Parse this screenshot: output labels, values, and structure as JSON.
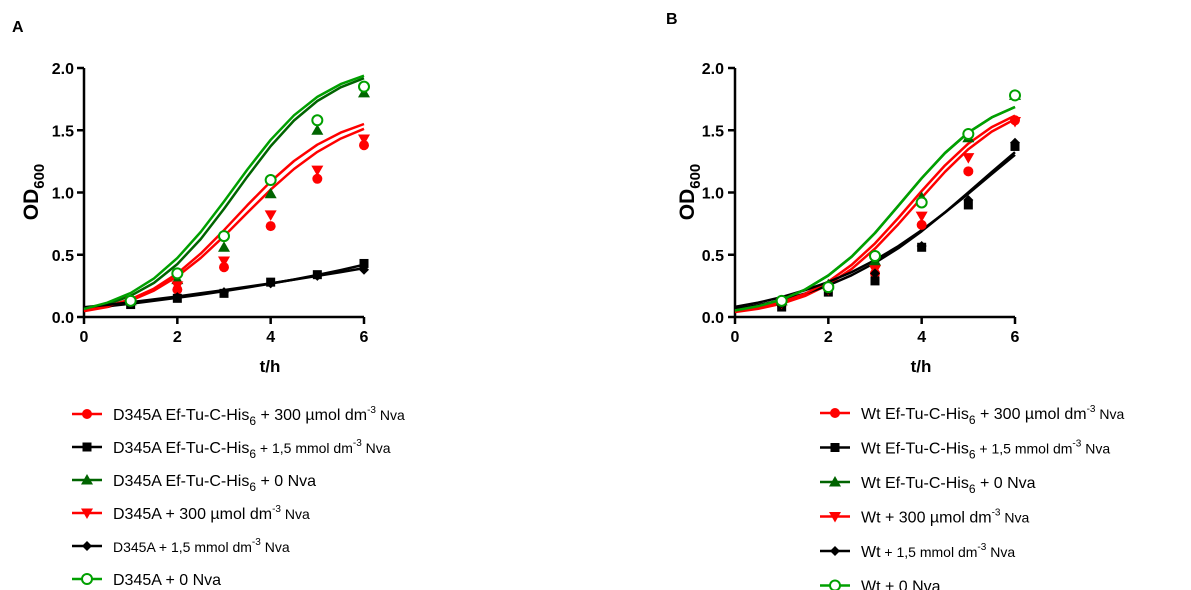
{
  "chart_data": [
    {
      "type": "line",
      "panel": "A",
      "xlabel": "t/h",
      "ylabel": "OD",
      "ylabel_sub": "600",
      "xlim": [
        0,
        6
      ],
      "ylim": [
        0,
        2.0
      ],
      "xticks": [
        0,
        2,
        4,
        6
      ],
      "xtick_labels": [
        "0",
        "2",
        "4",
        "6"
      ],
      "yticks": [
        0,
        0.5,
        1.0,
        1.5,
        2.0
      ],
      "ytick_labels": [
        "0.0",
        "0.5",
        "1.0",
        "1.5",
        "2.0"
      ],
      "grid": false,
      "legend_position": "bottom-left",
      "x": [
        1,
        2,
        3,
        4,
        5,
        6
      ],
      "series": [
        {
          "name": "D345A Ef-Tu-C-His6 + 300 µmol dm-3 Nva",
          "legend_parts": [
            "D345A Ef-Tu-C-His",
            "6",
            " + 300 µmol dm",
            "-3",
            " Nva"
          ],
          "color": "#ff0000",
          "marker": "circle-filled",
          "values": [
            0.12,
            0.22,
            0.4,
            0.73,
            1.11,
            1.38
          ],
          "fit": [
            0.047,
            0.08,
            0.132,
            0.212,
            0.326,
            0.474,
            0.649,
            0.838,
            1.023,
            1.189,
            1.326,
            1.433,
            1.512
          ]
        },
        {
          "name": "D345A Ef-Tu-C-His6 + 1,5 mmol dm-3 Nva",
          "legend_parts": [
            "D345A Ef-Tu-C-His",
            "6",
            " + 1,5 mmol dm",
            "-3",
            " Nva"
          ],
          "color": "#000000",
          "marker": "square-filled",
          "values": [
            0.1,
            0.15,
            0.19,
            0.28,
            0.34,
            0.43
          ],
          "fit": [
            0.07,
            0.087,
            0.107,
            0.13,
            0.155,
            0.18,
            0.208,
            0.237,
            0.268,
            0.301,
            0.337,
            0.377,
            0.42
          ]
        },
        {
          "name": "D345A Ef-Tu-C-His6 + 0 Nva",
          "legend_parts": [
            "D345A Ef-Tu-C-His",
            "6",
            " + 0 Nva"
          ],
          "color": "#006400",
          "marker": "triangle-up-filled",
          "values": [
            0.13,
            0.3,
            0.56,
            0.99,
            1.5,
            1.8
          ],
          "fit": [
            0.059,
            0.102,
            0.17,
            0.274,
            0.425,
            0.626,
            0.868,
            1.127,
            1.373,
            1.578,
            1.735,
            1.845,
            1.918
          ]
        },
        {
          "name": "D345A + 300 µmol dm-3 Nva",
          "legend_parts": [
            "D345A + 300 µmol dm",
            "-3",
            " Nva"
          ],
          "color": "#ff0000",
          "marker": "triangle-down-filled",
          "values": [
            0.12,
            0.25,
            0.45,
            0.82,
            1.18,
            1.43
          ],
          "fit": [
            0.05,
            0.086,
            0.142,
            0.228,
            0.35,
            0.509,
            0.697,
            0.897,
            1.088,
            1.253,
            1.384,
            1.481,
            1.55
          ]
        },
        {
          "name": "D345A + 1,5 mmol dm-3 Nva",
          "legend_parts": [
            "D345A + 1,5 mmol dm",
            "-3",
            " Nva"
          ],
          "color": "#000000",
          "marker": "diamond-filled",
          "values": [
            0.11,
            0.16,
            0.2,
            0.27,
            0.33,
            0.38
          ],
          "fit": [
            0.078,
            0.097,
            0.118,
            0.141,
            0.165,
            0.19,
            0.216,
            0.243,
            0.271,
            0.3,
            0.33,
            0.361,
            0.393
          ]
        },
        {
          "name": "D345A + 0 Nva",
          "legend_parts": [
            "D345A + 0 Nva"
          ],
          "color": "#00a000",
          "marker": "circle-open",
          "values": [
            0.13,
            0.35,
            0.65,
            1.1,
            1.58,
            1.85
          ],
          "fit": [
            0.065,
            0.115,
            0.193,
            0.31,
            0.473,
            0.683,
            0.928,
            1.184,
            1.423,
            1.62,
            1.768,
            1.871,
            1.938
          ]
        }
      ]
    },
    {
      "type": "line",
      "panel": "B",
      "xlabel": "t/h",
      "ylabel": "OD",
      "ylabel_sub": "600",
      "xlim": [
        0,
        6
      ],
      "ylim": [
        0,
        2.0
      ],
      "xticks": [
        0,
        2,
        4,
        6
      ],
      "xtick_labels": [
        "0",
        "2",
        "4",
        "6"
      ],
      "yticks": [
        0,
        0.5,
        1.0,
        1.5,
        2.0
      ],
      "ytick_labels": [
        "0.0",
        "0.5",
        "1.0",
        "1.5",
        "2.0"
      ],
      "grid": false,
      "legend_position": "bottom-right",
      "x": [
        1,
        2,
        3,
        4,
        5,
        6
      ],
      "series": [
        {
          "name": "Wt Ef-Tu-C-His6 + 300 µmol dm-3 Nva",
          "legend_parts": [
            "Wt Ef-Tu-C-His",
            "6",
            " + 300 µmol dm",
            "-3",
            " Nva"
          ],
          "color": "#ff0000",
          "marker": "circle-filled",
          "values": [
            0.1,
            0.23,
            0.35,
            0.74,
            1.17,
            1.58
          ],
          "fit": [
            0.04,
            0.066,
            0.107,
            0.169,
            0.26,
            0.386,
            0.549,
            0.745,
            0.958,
            1.166,
            1.348,
            1.489,
            1.589
          ]
        },
        {
          "name": "Wt Ef-Tu-C-His6 + 1,5 mmol dm-3 Nva",
          "legend_parts": [
            "Wt Ef-Tu-C-His",
            "6",
            " + 1,5 mmol dm",
            "-3",
            " Nva"
          ],
          "color": "#000000",
          "marker": "square-filled",
          "values": [
            0.08,
            0.2,
            0.29,
            0.56,
            0.9,
            1.37
          ],
          "fit": [
            0.064,
            0.095,
            0.136,
            0.188,
            0.254,
            0.336,
            0.435,
            0.553,
            0.689,
            0.84,
            1.0,
            1.164,
            1.324
          ]
        },
        {
          "name": "Wt Ef-Tu-C-His6 + 0 Nva",
          "legend_parts": [
            "Wt Ef-Tu-C-His",
            "6",
            " + 0 Nva"
          ],
          "color": "#006400",
          "marker": "triangle-up-filled",
          "values": [
            0.13,
            0.26,
            0.45,
            0.96,
            1.44,
            1.78
          ],
          "fit": [
            0.052,
            0.087,
            0.14,
            0.22,
            0.333,
            0.485,
            0.675,
            0.893,
            1.115,
            1.317,
            1.482,
            1.603,
            1.687
          ]
        },
        {
          "name": "Wt + 300 µmol dm-3 Nva",
          "legend_parts": [
            "Wt",
            " + 300 µmol dm",
            "-3",
            " Nva"
          ],
          "color": "#ff0000",
          "marker": "triangle-down-filled",
          "values": [
            0.11,
            0.22,
            0.38,
            0.81,
            1.28,
            1.57
          ],
          "fit": [
            0.044,
            0.073,
            0.118,
            0.186,
            0.284,
            0.419,
            0.591,
            0.795,
            1.012,
            1.218,
            1.393,
            1.525,
            1.618
          ]
        },
        {
          "name": "Wt + 1,5 mmol dm-3 Nva",
          "legend_parts": [
            "Wt",
            " + 1,5 mmol dm",
            "-3",
            " Nva"
          ],
          "color": "#000000",
          "marker": "diamond-filled",
          "values": [
            0.11,
            0.22,
            0.35,
            0.57,
            0.94,
            1.4
          ],
          "fit": [
            0.081,
            0.116,
            0.16,
            0.215,
            0.281,
            0.361,
            0.457,
            0.569,
            0.697,
            0.839,
            0.991,
            1.148,
            1.303
          ]
        },
        {
          "name": "Wt + 0 Nva",
          "legend_parts": [
            "Wt",
            " + 0 Nva"
          ],
          "color": "#00a000",
          "marker": "circle-open",
          "values": [
            0.13,
            0.24,
            0.49,
            0.92,
            1.47,
            1.78
          ],
          "fit": [
            0.052,
            0.087,
            0.14,
            0.22,
            0.333,
            0.485,
            0.675,
            0.893,
            1.115,
            1.317,
            1.482,
            1.603,
            1.687
          ]
        }
      ]
    }
  ]
}
